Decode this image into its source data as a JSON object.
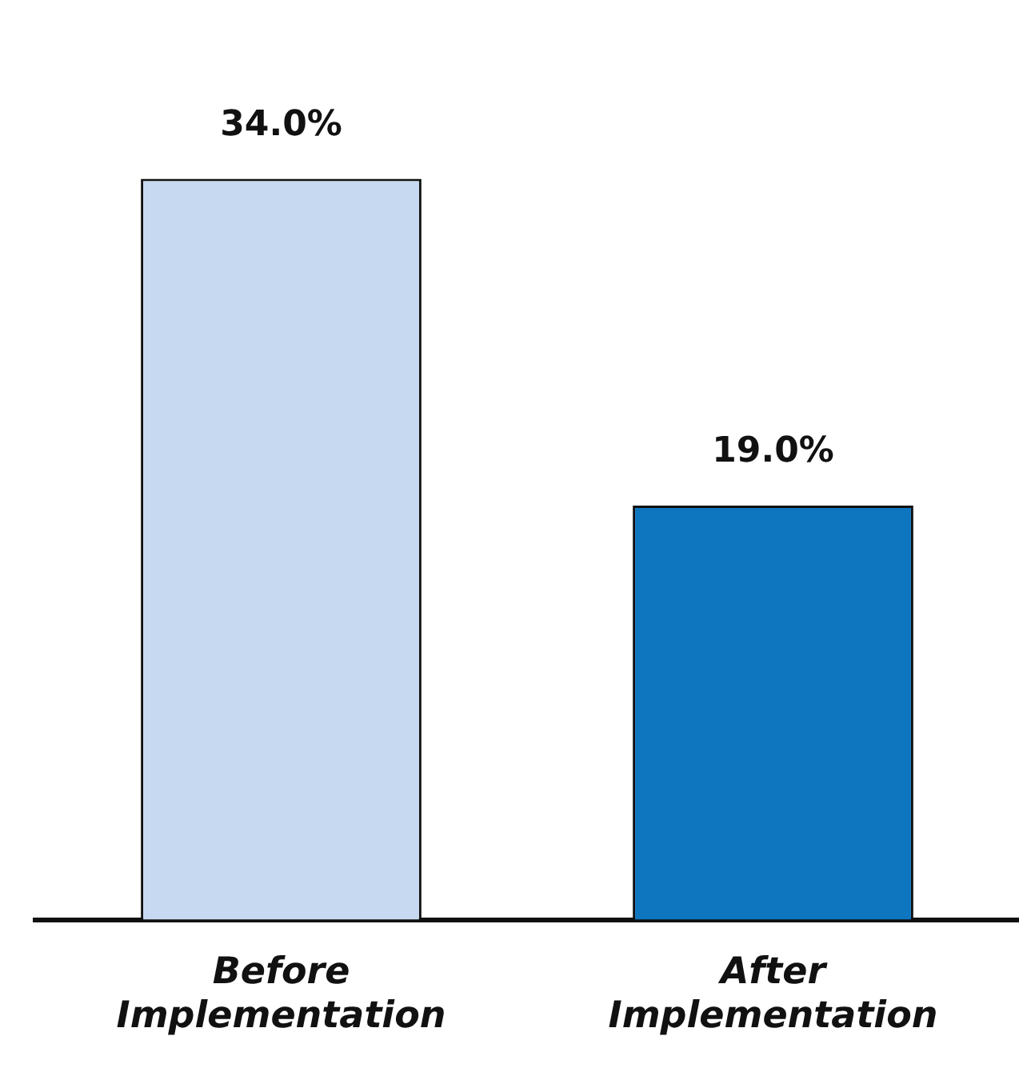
{
  "chart_data": {
    "type": "bar",
    "categories": [
      "Before Implementation",
      "After Implementation"
    ],
    "values": [
      34,
      19
    ],
    "colors": [
      "#c6d9f0",
      "#0e75bf"
    ],
    "value_labels": [
      "34.0%",
      "19.0%"
    ],
    "relative": false,
    "grid": false,
    "legend": false
  }
}
